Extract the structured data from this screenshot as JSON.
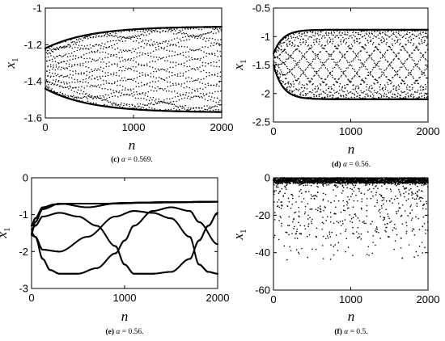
{
  "chart_data": [
    {
      "type": "scatter",
      "panel": "c",
      "caption": {
        "label": "(c)",
        "alpha_text": "α",
        "rest": " = 0.569."
      },
      "xlabel": "n",
      "ylabel": "x",
      "ylabel_sub": "1",
      "xlim": [
        0,
        2000
      ],
      "ylim": [
        -1.6,
        -1.0
      ],
      "xticks": [
        0,
        1000,
        2000
      ],
      "xtick_labels": [
        "0",
        "1000",
        "2000"
      ],
      "yticks": [
        -1.6,
        -1.4,
        -1.2,
        -1.0
      ],
      "ytick_labels": [
        "-1.6",
        "-1.4",
        "-1.2",
        "-1"
      ],
      "series": [
        {
          "pattern": "envelope_band",
          "center_start": -1.33,
          "amp_start": 0.11,
          "upper_end": -1.1,
          "lower_end": -1.57,
          "tau": 500,
          "bands": 26,
          "spread": 0.012
        }
      ]
    },
    {
      "type": "scatter",
      "panel": "d",
      "caption": {
        "label": "(d)",
        "alpha_text": "α",
        "rest": " = 0.56."
      },
      "xlabel": "n",
      "ylabel": "x",
      "ylabel_sub": "1",
      "xlim": [
        0,
        2000
      ],
      "ylim": [
        -2.5,
        -0.5
      ],
      "xticks": [
        0,
        1000,
        2000
      ],
      "xtick_labels": [
        "0",
        "1000",
        "2000"
      ],
      "yticks": [
        -2.5,
        -2.0,
        -1.5,
        -1.0,
        -0.5
      ],
      "ytick_labels": [
        "-2.5",
        "-2",
        "-1.5",
        "-1",
        "-0.5"
      ],
      "series": [
        {
          "pattern": "envelope_band",
          "center_start": -1.4,
          "amp_start": 0.1,
          "upper_end": -0.88,
          "lower_end": -2.1,
          "tau": 120,
          "bands": 12,
          "spread": 0.025
        }
      ]
    },
    {
      "type": "line",
      "panel": "e",
      "caption": {
        "label": "(e)",
        "alpha_text": "α",
        "rest": " = 0.56."
      },
      "xlabel": "n",
      "ylabel": "x",
      "ylabel_sub": "1",
      "xlim": [
        0,
        2000
      ],
      "ylim": [
        -3,
        0
      ],
      "xticks": [
        0,
        1000,
        2000
      ],
      "xtick_labels": [
        "0",
        "1000",
        "2000"
      ],
      "yticks": [
        -3,
        -2,
        -1,
        0
      ],
      "ytick_labels": [
        "-3",
        "-2",
        "-1",
        "0"
      ],
      "series": [
        {
          "x": [
            0,
            40,
            120,
            300,
            600,
            900,
            1200,
            1500,
            1800,
            2000
          ],
          "y": [
            -1.5,
            -1.2,
            -0.85,
            -0.7,
            -0.8,
            -0.7,
            -0.68,
            -0.67,
            -0.66,
            -0.65
          ]
        },
        {
          "x": [
            0,
            40,
            120,
            200,
            300,
            500,
            700,
            900,
            1000,
            1100,
            1300,
            1500,
            1700,
            1800,
            2000
          ],
          "y": [
            -1.5,
            -1.6,
            -2.2,
            -2.5,
            -2.6,
            -2.6,
            -2.45,
            -2.05,
            -1.7,
            -1.3,
            -0.9,
            -0.8,
            -0.9,
            -1.2,
            -1.8
          ]
        },
        {
          "x": [
            0,
            40,
            120,
            300,
            500,
            700,
            900,
            1000,
            1100,
            1300,
            1500,
            1700,
            1800,
            1900,
            2000
          ],
          "y": [
            -1.4,
            -1.3,
            -1.05,
            -0.95,
            -1.05,
            -1.3,
            -1.85,
            -2.35,
            -2.6,
            -2.6,
            -2.55,
            -2.2,
            -1.7,
            -1.3,
            -0.95
          ]
        },
        {
          "x": [
            0,
            40,
            120,
            300,
            600,
            900,
            1100,
            1300,
            1500,
            1700,
            1800,
            1900,
            2000
          ],
          "y": [
            -1.55,
            -1.6,
            -1.95,
            -2.0,
            -1.6,
            -1.05,
            -0.9,
            -0.95,
            -1.1,
            -1.6,
            -2.35,
            -2.55,
            -2.6
          ]
        },
        {
          "x": [
            0,
            40,
            120,
            250,
            400,
            600,
            800,
            1000,
            1200,
            1400,
            1600,
            1800,
            2000
          ],
          "y": [
            -1.3,
            -1.1,
            -0.8,
            -0.72,
            -0.7,
            -0.7,
            -0.7,
            -0.68,
            -0.67,
            -0.66,
            -0.66,
            -0.65,
            -0.65
          ]
        }
      ]
    },
    {
      "type": "scatter",
      "panel": "f",
      "caption": {
        "label": "(f)",
        "alpha_text": "α",
        "rest": " = 0.5."
      },
      "xlabel": "n",
      "ylabel": "x",
      "ylabel_sub": "1",
      "xlim": [
        0,
        2000
      ],
      "ylim": [
        -60,
        0
      ],
      "xticks": [
        0,
        1000,
        2000
      ],
      "xtick_labels": [
        "0",
        "1000",
        "2000"
      ],
      "yticks": [
        -60,
        -40,
        -20,
        0
      ],
      "ytick_labels": [
        "-60",
        "-40",
        "-20",
        "0"
      ],
      "series": [
        {
          "pattern": "sparse_scatter",
          "dense_band": [
            -3.0,
            0.0
          ],
          "min_value": -44
        }
      ]
    }
  ]
}
